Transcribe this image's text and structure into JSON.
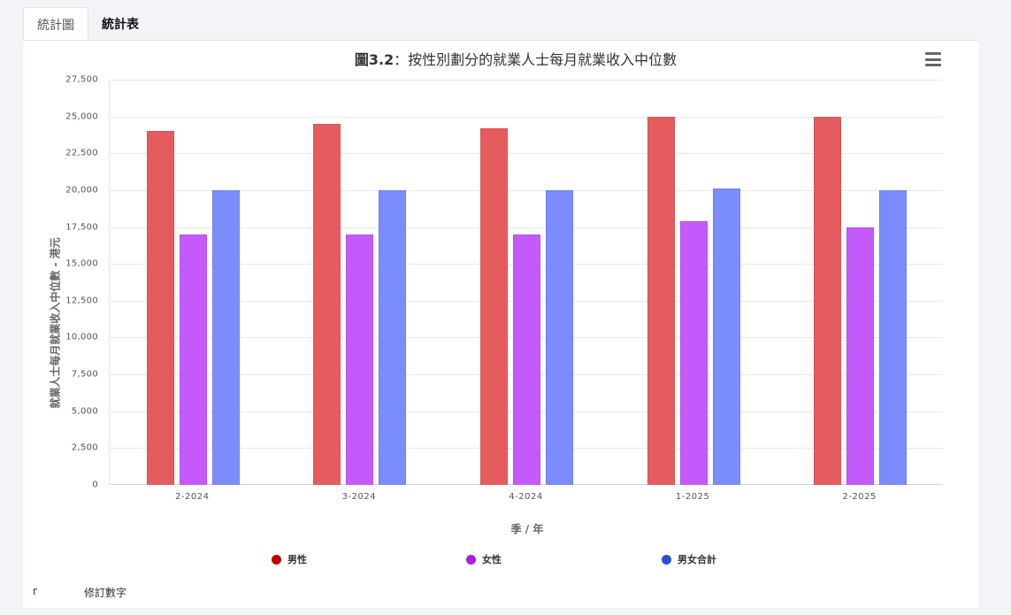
{
  "tabs": [
    {
      "label": "統計圖",
      "active": true
    },
    {
      "label": "統計表",
      "active": false
    }
  ],
  "chart": {
    "title_prefix": "圖3.2",
    "title_rest": "：按性別劃分的就業人士每月就業收入中位數",
    "menu_icon": "hamburger-menu-icon",
    "y_axis_title": "就業人士每月就業收入中位數 - 港元",
    "x_axis_title": "季 / 年",
    "y_ticks": [
      "0",
      "2,500",
      "5,000",
      "7,500",
      "10,000",
      "12,500",
      "15,000",
      "17,500",
      "20,000",
      "22,500",
      "25,000",
      "27,500"
    ]
  },
  "legend": [
    {
      "label": "男性",
      "color": "#c00000"
    },
    {
      "label": "女性",
      "color": "#a61ee3"
    },
    {
      "label": "男女合計",
      "color": "#2d4ed8"
    }
  ],
  "footnote": {
    "symbol": "r",
    "text": "修訂數字"
  },
  "chart_data": {
    "type": "bar",
    "title": "圖3.2：按性別劃分的就業人士每月就業收入中位數",
    "xlabel": "季 / 年",
    "ylabel": "就業人士每月就業收入中位數 - 港元",
    "categories": [
      "2-2024",
      "3-2024",
      "4-2024",
      "1-2025",
      "2-2025"
    ],
    "series": [
      {
        "name": "男性",
        "color": "#e55c5e",
        "values": [
          24000,
          24500,
          24200,
          25000,
          25000
        ]
      },
      {
        "name": "女性",
        "color": "#c45afc",
        "values": [
          17000,
          17000,
          17000,
          17900,
          17500
        ]
      },
      {
        "name": "男女合計",
        "color": "#7b8cfd",
        "values": [
          20000,
          20000,
          20000,
          20100,
          20000
        ]
      }
    ],
    "ylim": [
      0,
      27500
    ],
    "y_tick_step": 2500,
    "grid": true,
    "legend_position": "bottom"
  }
}
